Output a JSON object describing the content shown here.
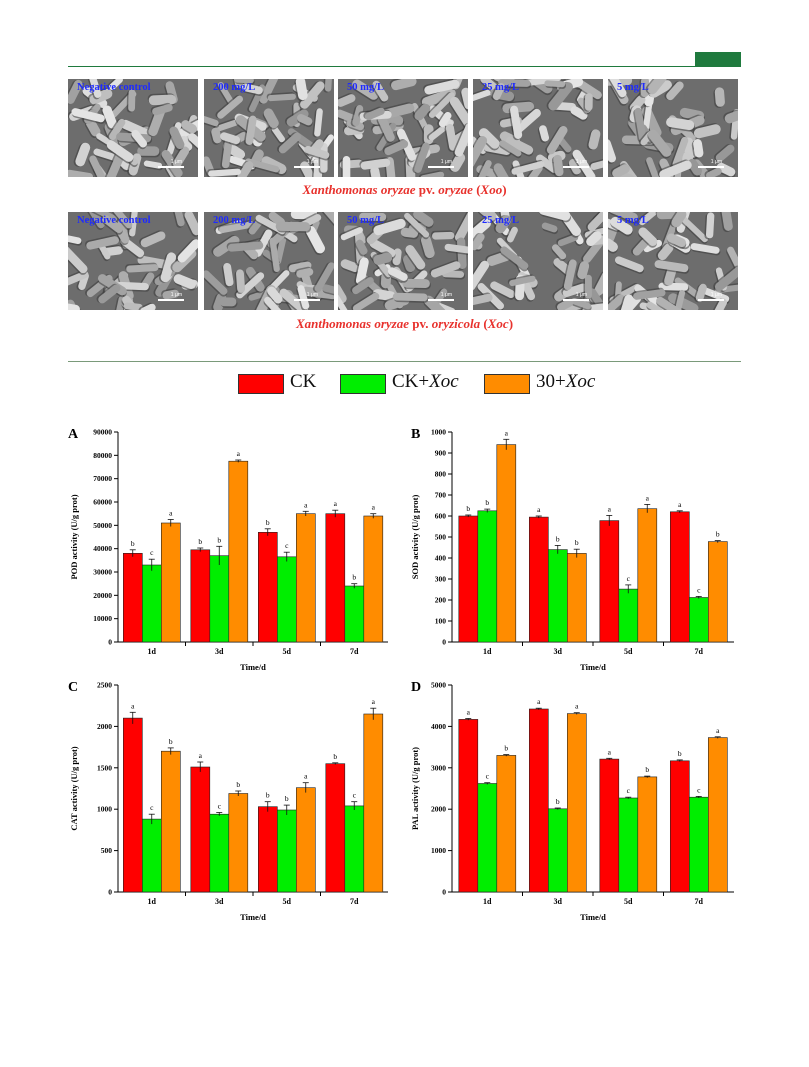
{
  "sem": {
    "rows": [
      {
        "caption_parts": [
          {
            "t": "Xanthomonas oryzae",
            "i": true
          },
          {
            "t": " pv. ",
            "i": false
          },
          {
            "t": "oryzae",
            "i": true
          },
          {
            "t": " (",
            "i": false
          },
          {
            "t": "Xoo",
            "i": true
          },
          {
            "t": ")",
            "i": false
          }
        ],
        "panels": [
          "Negative control",
          "200 mg/L",
          "50 mg/L",
          "25 mg/L",
          "5 mg/L"
        ]
      },
      {
        "caption_parts": [
          {
            "t": "Xanthomonas oryzae",
            "i": true
          },
          {
            "t": " pv. ",
            "i": false
          },
          {
            "t": "oryzicola",
            "i": true
          },
          {
            "t": " (",
            "i": false
          },
          {
            "t": "Xoc",
            "i": true
          },
          {
            "t": ")",
            "i": false
          }
        ],
        "panels": [
          "Negative control",
          "200 mg/L",
          "50 mg/L",
          "25 mg/L",
          "5 mg/L"
        ]
      }
    ],
    "scale_text": "1 μm"
  },
  "legend": [
    {
      "prefix": "CK",
      "italic": "",
      "color": "#ff0000"
    },
    {
      "prefix": "CK+",
      "italic": "Xoc",
      "color": "#00ee00"
    },
    {
      "prefix": "30+",
      "italic": "Xoc",
      "color": "#ff8c00"
    }
  ],
  "colors": {
    "ck": "#ff0000",
    "ckxoc": "#00ee00",
    "t30xoc": "#ff8c00"
  },
  "chart_data": [
    {
      "panel_letter": "A",
      "type": "bar",
      "categories": [
        "1d",
        "3d",
        "5d",
        "7d"
      ],
      "xlabel": "Time/d",
      "ylabel": "POD activity (U/g prot)",
      "ylim": [
        0,
        90000
      ],
      "yticks": [
        0,
        10000,
        20000,
        30000,
        40000,
        50000,
        60000,
        70000,
        80000,
        90000
      ],
      "series": [
        {
          "values": [
            38000,
            39500,
            47000,
            55000
          ],
          "errors": [
            1500,
            800,
            1500,
            1500
          ],
          "letters": [
            "b",
            "b",
            "b",
            "a"
          ]
        },
        {
          "values": [
            33000,
            37000,
            36500,
            24000
          ],
          "errors": [
            2500,
            4000,
            2000,
            1000
          ],
          "letters": [
            "c",
            "b",
            "c",
            "b"
          ]
        },
        {
          "values": [
            51000,
            77500,
            55000,
            54000
          ],
          "errors": [
            1500,
            500,
            1000,
            1000
          ],
          "letters": [
            "a",
            "a",
            "a",
            "a"
          ]
        }
      ]
    },
    {
      "panel_letter": "B",
      "type": "bar",
      "categories": [
        "1d",
        "3d",
        "5d",
        "7d"
      ],
      "xlabel": "Time/d",
      "ylabel": "SOD activity (U/g prot)",
      "ylim": [
        0,
        1000
      ],
      "yticks": [
        0,
        100,
        200,
        300,
        400,
        500,
        600,
        700,
        800,
        900,
        1000
      ],
      "series": [
        {
          "values": [
            600,
            595,
            578,
            620
          ],
          "errors": [
            5,
            5,
            25,
            5
          ],
          "letters": [
            "b",
            "a",
            "a",
            "a"
          ]
        },
        {
          "values": [
            625,
            440,
            252,
            212
          ],
          "errors": [
            8,
            20,
            20,
            5
          ],
          "letters": [
            "b",
            "b",
            "c",
            "c"
          ]
        },
        {
          "values": [
            940,
            422,
            635,
            478
          ],
          "errors": [
            25,
            20,
            20,
            5
          ],
          "letters": [
            "a",
            "b",
            "a",
            "b"
          ]
        }
      ]
    },
    {
      "panel_letter": "C",
      "type": "bar",
      "categories": [
        "1d",
        "3d",
        "5d",
        "7d"
      ],
      "xlabel": "Time/d",
      "ylabel": "CAT activity (U/g prot)",
      "ylim": [
        0,
        2500
      ],
      "yticks": [
        0,
        500,
        1000,
        1500,
        2000,
        2500
      ],
      "series": [
        {
          "values": [
            2100,
            1510,
            1030,
            1550
          ],
          "errors": [
            70,
            60,
            60,
            10
          ],
          "letters": [
            "a",
            "a",
            "b",
            "b"
          ]
        },
        {
          "values": [
            880,
            940,
            990,
            1040
          ],
          "errors": [
            60,
            20,
            60,
            50
          ],
          "letters": [
            "c",
            "c",
            "b",
            "c"
          ]
        },
        {
          "values": [
            1700,
            1190,
            1260,
            2150
          ],
          "errors": [
            40,
            30,
            60,
            70
          ],
          "letters": [
            "b",
            "b",
            "a",
            "a"
          ]
        }
      ]
    },
    {
      "panel_letter": "D",
      "type": "bar",
      "categories": [
        "1d",
        "3d",
        "5d",
        "7d"
      ],
      "xlabel": "Time/d",
      "ylabel": "PAL activity (U/g prot)",
      "ylim": [
        0,
        5000
      ],
      "yticks": [
        0,
        1000,
        2000,
        3000,
        4000,
        5000
      ],
      "series": [
        {
          "values": [
            4170,
            4420,
            3210,
            3170
          ],
          "errors": [
            20,
            20,
            20,
            20
          ],
          "letters": [
            "a",
            "a",
            "a",
            "b"
          ]
        },
        {
          "values": [
            2620,
            2010,
            2270,
            2290
          ],
          "errors": [
            20,
            20,
            20,
            20
          ],
          "letters": [
            "c",
            "b",
            "c",
            "c"
          ]
        },
        {
          "values": [
            3300,
            4310,
            2780,
            3730
          ],
          "errors": [
            20,
            20,
            20,
            20
          ],
          "letters": [
            "b",
            "a",
            "b",
            "a"
          ]
        }
      ]
    }
  ]
}
